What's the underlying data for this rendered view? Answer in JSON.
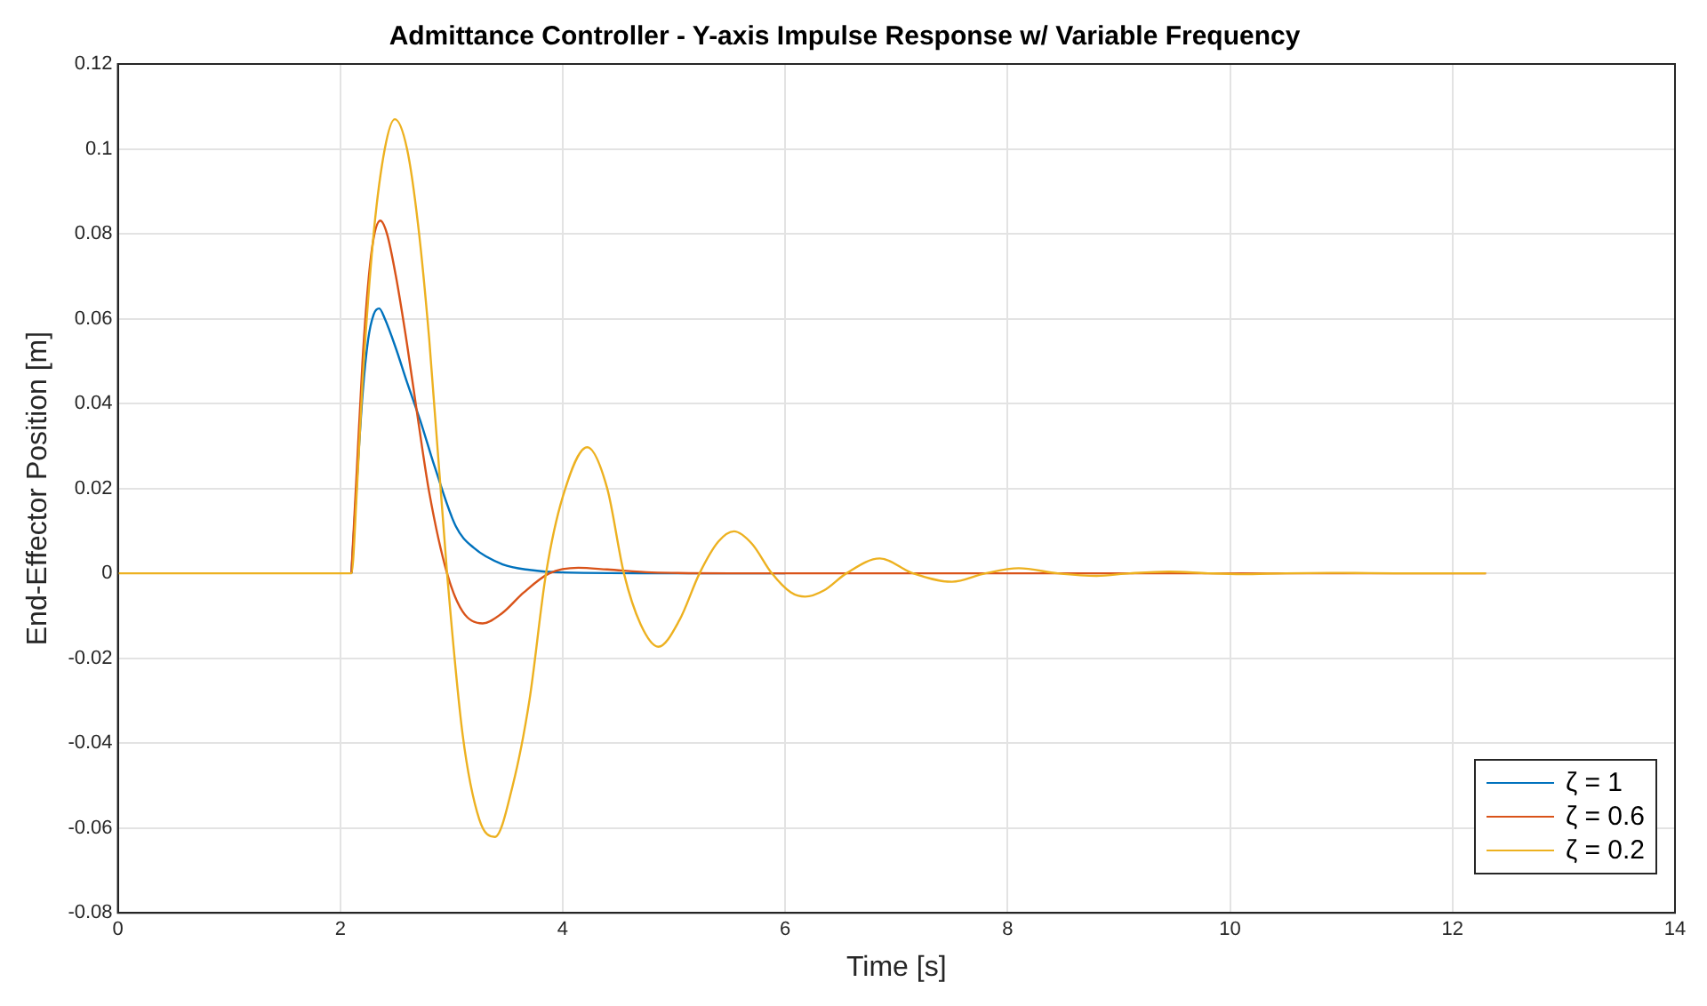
{
  "chart_data": {
    "type": "line",
    "title": "Admittance Controller - Y-axis Impulse Response w/ Variable Frequency",
    "xlabel": "Time [s]",
    "ylabel": "End-Effector Position [m]",
    "xlim": [
      0,
      14
    ],
    "xticks": [
      0,
      2,
      4,
      6,
      8,
      10,
      12,
      14
    ],
    "ylim": [
      -0.08,
      0.12
    ],
    "yticks": [
      -0.08,
      -0.06,
      -0.04,
      -0.02,
      0,
      0.02,
      0.04,
      0.06,
      0.08,
      0.1,
      0.12
    ],
    "grid": true,
    "legend": "bottom right",
    "marker": "none",
    "line_style": "solid",
    "series": [
      {
        "name": "ζ = 1",
        "color": "#0072bd",
        "x": [
          2.1,
          2.2,
          2.25,
          2.3,
          2.35,
          2.4,
          2.5,
          2.6,
          2.72,
          2.85,
          3.04,
          3.2,
          3.46,
          3.7,
          4,
          5,
          6
        ],
        "values": [
          0,
          0.042,
          0.055,
          0.061,
          0.0624,
          0.06,
          0.053,
          0.045,
          0.0359,
          0.025,
          0.011,
          0.006,
          0.0021,
          0.0008,
          0.0002,
          0,
          0
        ]
      },
      {
        "name": "ζ = 0.6",
        "color": "#d95319",
        "x": [
          2.1,
          2.15,
          2.2,
          2.25,
          2.3,
          2.36,
          2.42,
          2.5,
          2.6,
          2.7,
          2.8,
          2.96,
          3.1,
          3.28,
          3.45,
          3.65,
          3.88,
          4.14,
          4.4,
          4.8,
          5.5,
          6,
          8,
          10,
          12.3
        ],
        "values": [
          0,
          0.025,
          0.05,
          0.068,
          0.079,
          0.0831,
          0.08,
          0.07,
          0.054,
          0.036,
          0.019,
          0,
          -0.009,
          -0.0118,
          -0.0095,
          -0.0045,
          0,
          0.0013,
          0.0009,
          0.0002,
          0,
          0,
          0,
          0,
          0
        ]
      },
      {
        "name": "ζ = 0.2",
        "color": "#edb120",
        "x": [
          0,
          2.1,
          2.15,
          2.2,
          2.3,
          2.4,
          2.49,
          2.6,
          2.7,
          2.8,
          2.96,
          3.1,
          3.25,
          3.39,
          3.55,
          3.7,
          3.85,
          4.0,
          4.22,
          4.4,
          4.55,
          4.7,
          4.86,
          5.05,
          5.23,
          5.4,
          5.54,
          5.7,
          5.88,
          6.05,
          6.18,
          6.35,
          6.55,
          6.85,
          7.15,
          7.5,
          7.8,
          8.1,
          8.45,
          8.8,
          9.1,
          9.45,
          9.8,
          10.1,
          10.5,
          11,
          11.5,
          12.3
        ],
        "values": [
          0,
          0,
          0.02,
          0.045,
          0.08,
          0.1,
          0.107,
          0.1,
          0.082,
          0.055,
          0,
          -0.038,
          -0.058,
          -0.0621,
          -0.05,
          -0.03,
          0,
          0.018,
          0.0297,
          0.02,
          0,
          -0.012,
          -0.0173,
          -0.011,
          0,
          0.0075,
          0.0099,
          0.007,
          0,
          -0.0045,
          -0.0055,
          -0.004,
          0,
          0.0035,
          0,
          -0.002,
          0,
          0.0012,
          0,
          -0.0006,
          0,
          0.0004,
          0,
          -0.0002,
          0,
          0.0001,
          0,
          0
        ]
      }
    ]
  }
}
